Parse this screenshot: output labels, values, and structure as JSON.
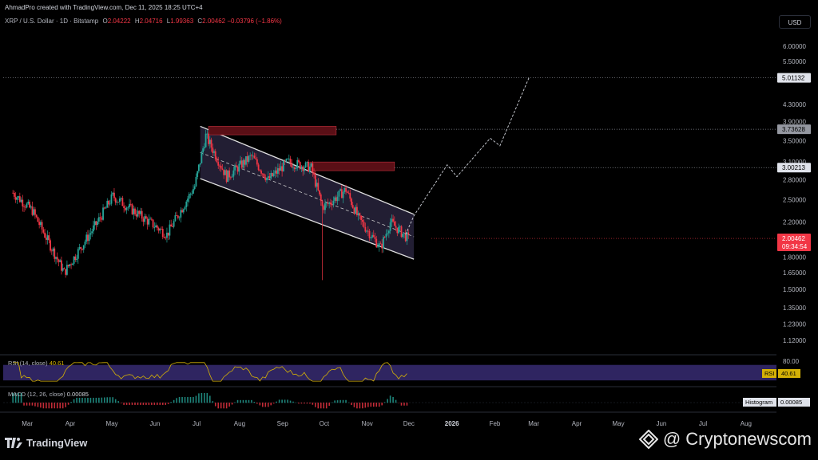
{
  "header": {
    "author": "AhmadPro created with TradingView.com, Dec 11, 2025 18:25 UTC+4",
    "symbol": "XRP / U.S. Dollar · 1D · Bitstamp",
    "open_label": "O",
    "open": "2.04222",
    "high_label": "H",
    "high": "2.04716",
    "low_label": "L",
    "low": "1.99363",
    "close_label": "C",
    "close": "2.00462",
    "change": "−0.03796 (−1.86%)"
  },
  "currency_button": "USD",
  "footer": {
    "brand": "TradingView",
    "watermark": "@ Cryptonewscom"
  },
  "colors": {
    "up": "#26a69a",
    "down": "#f23645",
    "channel": "#2a2540",
    "zone": "#5a0f16",
    "rsi": "#d4b106",
    "rsi_band": "#2f2561",
    "label_bg": "#e0e3eb"
  },
  "chart_data": {
    "type": "candlestick",
    "price_scale": "log",
    "y_ticks": [
      "6.00000",
      "5.50000",
      "4.30000",
      "3.90000",
      "3.50000",
      "3.10000",
      "2.80000",
      "2.50000",
      "2.20000",
      "1.80000",
      "1.65000",
      "1.50000",
      "1.35000",
      "1.23000",
      "1.12000"
    ],
    "x_ticks": [
      "Mar",
      "Apr",
      "May",
      "Jun",
      "Jul",
      "Aug",
      "Sep",
      "Oct",
      "Nov",
      "Dec",
      "2026",
      "Feb",
      "Mar",
      "Apr",
      "May",
      "Jun",
      "Jul",
      "Aug"
    ],
    "price_labels": [
      {
        "text": "5.01132",
        "value": 5.01132,
        "style": "light"
      },
      {
        "text": "3.73628",
        "value": 3.73628,
        "style": "gray"
      },
      {
        "text": "3.00213",
        "value": 3.00213,
        "style": "light"
      }
    ],
    "last_price": {
      "text": "2.00462",
      "countdown": "09:34:54",
      "value": 2.00462
    },
    "resistance_zones": [
      [
        3.62,
        3.8
      ],
      [
        2.95,
        3.1
      ]
    ],
    "channel": {
      "upper": [
        [
          "2025-07-14",
          3.8
        ],
        [
          "2025-12-15",
          2.3
        ]
      ],
      "lower": [
        [
          "2025-07-14",
          2.82
        ],
        [
          "2025-12-15",
          1.78
        ]
      ]
    },
    "projection": [
      [
        "2025-12-09",
        2.05
      ],
      [
        "2025-12-15",
        2.28
      ],
      [
        "2026-01-08",
        3.05
      ],
      [
        "2026-01-15",
        2.85
      ],
      [
        "2026-02-08",
        3.55
      ],
      [
        "2026-02-15",
        3.4
      ],
      [
        "2026-03-08",
        5.02
      ]
    ],
    "key_points": [
      [
        "2025-03-01",
        2.6
      ],
      [
        "2025-03-15",
        2.35
      ],
      [
        "2025-04-07",
        1.65
      ],
      [
        "2025-05-01",
        2.2
      ],
      [
        "2025-05-12",
        2.55
      ],
      [
        "2025-06-20",
        2.05
      ],
      [
        "2025-07-10",
        2.7
      ],
      [
        "2025-07-18",
        3.6
      ],
      [
        "2025-08-02",
        2.85
      ],
      [
        "2025-08-20",
        3.2
      ],
      [
        "2025-09-01",
        2.8
      ],
      [
        "2025-09-15",
        3.1
      ],
      [
        "2025-10-02",
        3.0
      ],
      [
        "2025-10-10",
        2.4
      ],
      [
        "2025-10-15",
        2.45
      ],
      [
        "2025-10-27",
        2.65
      ],
      [
        "2025-11-05",
        2.25
      ],
      [
        "2025-11-21",
        1.9
      ],
      [
        "2025-11-28",
        2.2
      ],
      [
        "2025-12-11",
        2.0
      ]
    ],
    "crash_wick": [
      "2025-10-10",
      1.58
    ],
    "rsi": {
      "label": "RSI (14, close)",
      "value": "40.61",
      "tag": "RSI",
      "level_text": "80.00",
      "band": [
        30,
        70
      ]
    },
    "macd": {
      "label": "MACD (12, 26, close)",
      "value": "0.00085",
      "tag": "Histogram"
    }
  }
}
